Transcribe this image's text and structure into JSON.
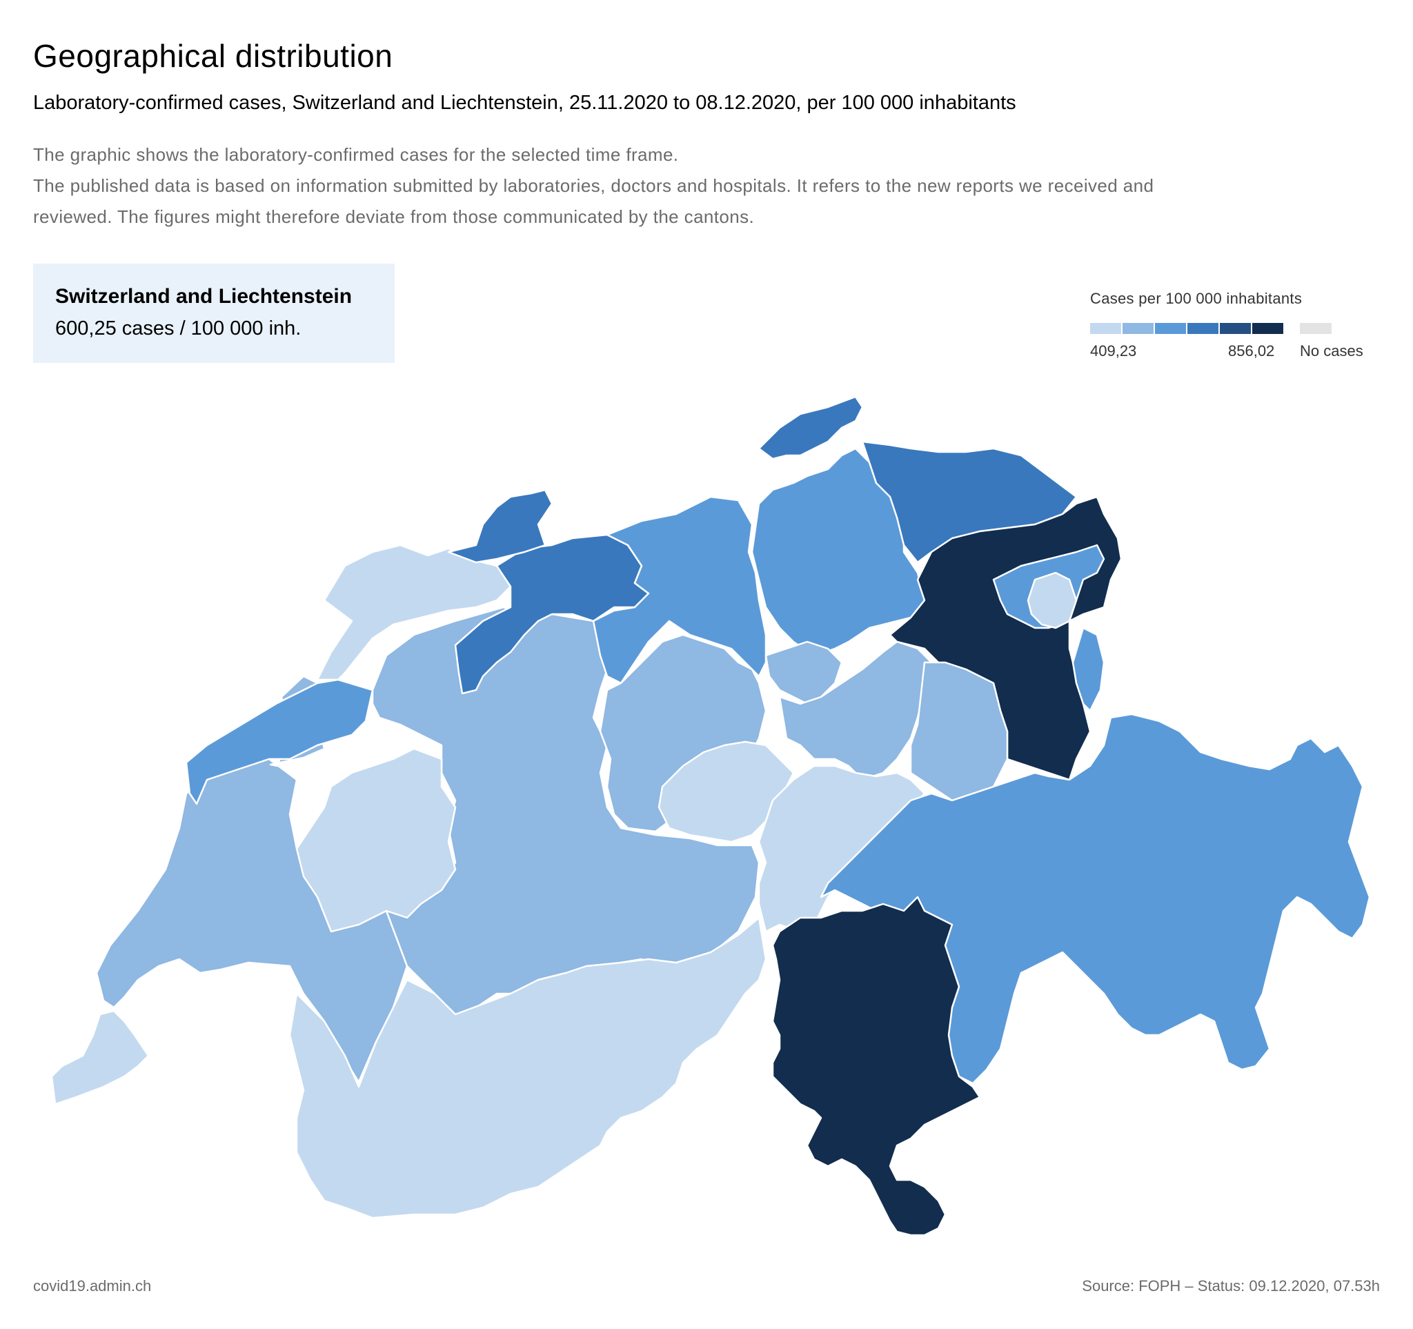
{
  "title": "Geographical distribution",
  "subtitle": "Laboratory-confirmed cases, Switzerland and Liechtenstein, 25.11.2020 to 08.12.2020, per 100 000 inhabitants",
  "description": [
    "The graphic shows the laboratory-confirmed cases for the selected time frame.",
    "The published data is based on information submitted by laboratories, doctors and hospitals. It refers to the new reports we received and",
    "reviewed. The figures might therefore deviate from those communicated by the cantons."
  ],
  "summary": {
    "name": "Switzerland and Liechtenstein",
    "value": "600,25 cases /  100 000 inh."
  },
  "legend": {
    "title": "Cases per 100 000 inhabitants",
    "min": "409,23",
    "max": "856,02",
    "no_cases": "No cases",
    "colors": [
      "#c3d9ef",
      "#8fb8e2",
      "#5b9ad8",
      "#3a78bd",
      "#254f83",
      "#122d4d"
    ],
    "no_cases_color": "#e3e3e3"
  },
  "footer": {
    "left": "covid19.admin.ch",
    "right": "Source: FOPH – Status: 09.12.2020, 07.53h"
  },
  "chart_data": {
    "type": "choropleth",
    "regions": [
      {
        "id": "jura",
        "class": 0
      },
      {
        "id": "neuchatel",
        "class": 2
      },
      {
        "id": "vaud",
        "class": 1
      },
      {
        "id": "geneva",
        "class": 0
      },
      {
        "id": "fribourg",
        "class": 0
      },
      {
        "id": "bern",
        "class": 1
      },
      {
        "id": "valais",
        "class": 0
      },
      {
        "id": "solothurn",
        "class": 3
      },
      {
        "id": "basel",
        "class": 3
      },
      {
        "id": "aargau",
        "class": 2
      },
      {
        "id": "zurich",
        "class": 2
      },
      {
        "id": "schaffhausen",
        "class": 3
      },
      {
        "id": "thurgau",
        "class": 3
      },
      {
        "id": "st-gallen",
        "class": 5
      },
      {
        "id": "appenzell-ar",
        "class": 2
      },
      {
        "id": "appenzell-ir",
        "class": 0
      },
      {
        "id": "liechtenstein",
        "class": 2
      },
      {
        "id": "lucerne",
        "class": 1
      },
      {
        "id": "zug",
        "class": 1
      },
      {
        "id": "schwyz",
        "class": 1
      },
      {
        "id": "glarus",
        "class": 1
      },
      {
        "id": "obwalden-nidwalden",
        "class": 0
      },
      {
        "id": "uri",
        "class": 0
      },
      {
        "id": "graubuenden",
        "class": 2
      },
      {
        "id": "ticino",
        "class": 5
      }
    ]
  }
}
